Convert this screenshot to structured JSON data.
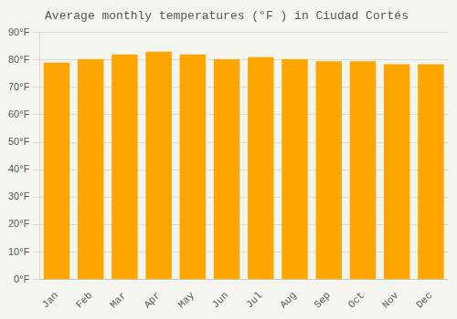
{
  "chart_data": {
    "type": "bar",
    "title": "Average monthly temperatures (°F ) in Ciudad Cortés",
    "categories": [
      "Jan",
      "Feb",
      "Mar",
      "Apr",
      "May",
      "Jun",
      "Jul",
      "Aug",
      "Sep",
      "Oct",
      "Nov",
      "Dec"
    ],
    "values": [
      79.0,
      80.2,
      82.0,
      83.0,
      82.0,
      80.2,
      81.0,
      80.2,
      79.5,
      79.5,
      78.4,
      78.4
    ],
    "color": "#FFA500",
    "ylim": [
      0,
      90
    ],
    "yticks": [
      {
        "value": 0,
        "label": "0°F"
      },
      {
        "value": 10,
        "label": "10°F"
      },
      {
        "value": 20,
        "label": "20°F"
      },
      {
        "value": 30,
        "label": "30°F"
      },
      {
        "value": 40,
        "label": "40°F"
      },
      {
        "value": 50,
        "label": "50°F"
      },
      {
        "value": 60,
        "label": "60°F"
      },
      {
        "value": 70,
        "label": "70°F"
      },
      {
        "value": 80,
        "label": "80°F"
      },
      {
        "value": 90,
        "label": "90°F"
      }
    ],
    "grid": true
  }
}
